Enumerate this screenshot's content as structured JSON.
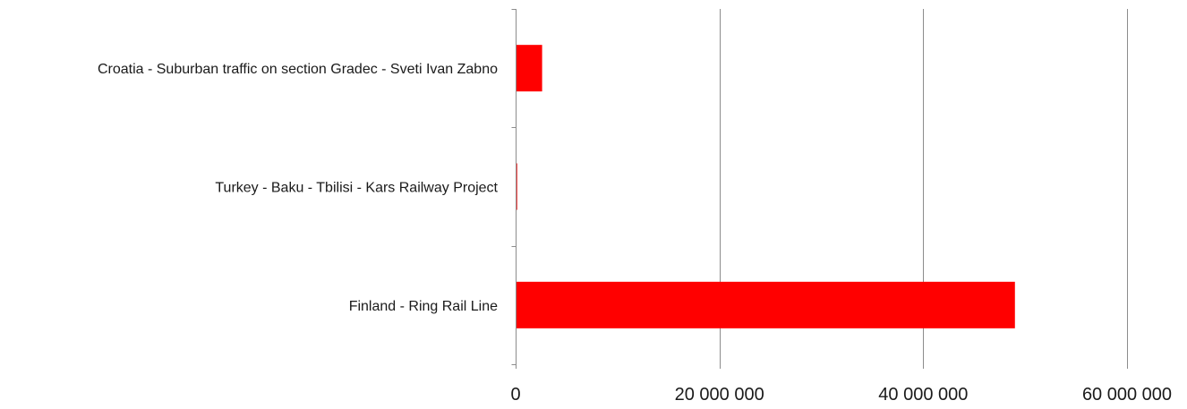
{
  "chart_data": {
    "type": "bar",
    "orientation": "horizontal",
    "categories": [
      "Croatia - Suburban traffic on section Gradec - Sveti Ivan Zabno",
      "Turkey  - Baku - Tbilisi - Kars Railway Project",
      "Finland - Ring Rail Line"
    ],
    "values": [
      2600000,
      150000,
      49000000
    ],
    "xlim": [
      0,
      60000000
    ],
    "xticks": [
      0,
      20000000,
      40000000,
      60000000
    ],
    "xtick_labels": [
      "0",
      "20 000 000",
      "40 000 000",
      "60 000 000"
    ],
    "title": "",
    "xlabel": "",
    "ylabel": "",
    "grid": "vertical",
    "legend": "none",
    "colors": {
      "bar": "#ff0000",
      "grid": "#8c8c8c",
      "axis": "#8c8c8c",
      "text": "#1a1a1a"
    }
  }
}
